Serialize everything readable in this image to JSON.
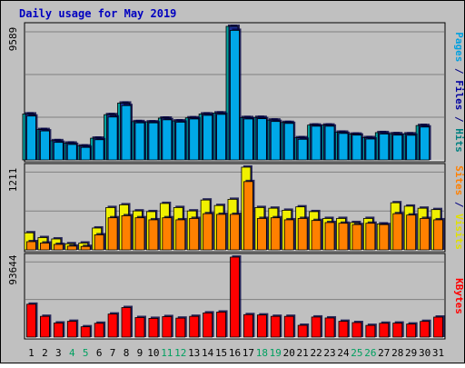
{
  "chart_data": {
    "type": "bar",
    "title": "Daily usage for May 2019",
    "days": [
      "1",
      "2",
      "3",
      "4",
      "5",
      "6",
      "7",
      "8",
      "9",
      "10",
      "11",
      "12",
      "13",
      "14",
      "15",
      "16",
      "17",
      "18",
      "19",
      "20",
      "21",
      "22",
      "23",
      "24",
      "25",
      "26",
      "27",
      "28",
      "29",
      "30",
      "31"
    ],
    "weekend_days": [
      "4",
      "5",
      "11",
      "12",
      "18",
      "19",
      "25",
      "26"
    ],
    "panels": [
      {
        "key": "top",
        "max_label": "9589",
        "ymax": 9589,
        "right_label": [
          {
            "text": "Pages",
            "color": "#00A0E0"
          },
          {
            "text": " / ",
            "color": "#000080"
          },
          {
            "text": "Files",
            "color": "#0000A0"
          },
          {
            "text": " / ",
            "color": "#000080"
          },
          {
            "text": "Hits",
            "color": "#008080"
          }
        ],
        "series": [
          {
            "name": "Hits",
            "color": "#00A0A0",
            "shadow": true,
            "values": [
              3300,
              2180,
              1380,
              1210,
              1000,
              1560,
              3250,
              4080,
              2750,
              2730,
              3000,
              2800,
              3020,
              3300,
              3370,
              9589,
              3040,
              3050,
              2860,
              2690,
              1590,
              2500,
              2500,
              1990,
              1850,
              1600,
              1960,
              1880,
              1870,
              2470,
              0
            ]
          },
          {
            "name": "Files",
            "color": "#1A2D8F",
            "shadow": true,
            "values": [
              3300,
              2180,
              1380,
              1210,
              1000,
              1560,
              3250,
              4080,
              2750,
              2730,
              3000,
              2800,
              3020,
              3300,
              3370,
              9589,
              3040,
              3050,
              2860,
              2690,
              1590,
              2500,
              2500,
              1990,
              1850,
              1600,
              1960,
              1880,
              1870,
              2470,
              0
            ]
          },
          {
            "name": "Pages",
            "color": "#00A8E8",
            "shadow": true,
            "values": [
              3150,
              2080,
              1260,
              1110,
              900,
              1450,
              3080,
              3900,
              2660,
              2660,
              2880,
              2710,
              2940,
              3200,
              3270,
              9300,
              2940,
              2960,
              2760,
              2620,
              1480,
              2420,
              2420,
              1900,
              1780,
              1500,
              1860,
              1780,
              1770,
              2360,
              0
            ]
          }
        ]
      },
      {
        "key": "middle",
        "max_label": "1211",
        "ymax": 1211,
        "right_label": [
          {
            "text": "Sites",
            "color": "#FF8000"
          },
          {
            "text": " / ",
            "color": "#000080"
          },
          {
            "text": "Visits",
            "color": "#E0E000"
          }
        ],
        "series": [
          {
            "name": "Visits",
            "color": "#F0F000",
            "shadow": true,
            "values": [
              250,
              180,
              160,
              90,
              100,
              320,
              620,
              660,
              570,
              560,
              680,
              620,
              570,
              730,
              650,
              740,
              1211,
              620,
              610,
              580,
              630,
              560,
              460,
              460,
              400,
              460,
              380,
              690,
              640,
              610,
              590
            ]
          },
          {
            "name": "Sites",
            "color": "#FF8000",
            "shadow": true,
            "values": [
              120,
              100,
              80,
              55,
              50,
              220,
              470,
              500,
              470,
              440,
              470,
              440,
              460,
              530,
              520,
              520,
              1000,
              460,
              470,
              440,
              460,
              430,
              400,
              390,
              370,
              390,
              370,
              530,
              510,
              460,
              440
            ]
          }
        ]
      },
      {
        "key": "bottom",
        "max_label": "93644",
        "ymax": 93644,
        "right_label": [
          {
            "text": "KBytes",
            "color": "#FF0000"
          }
        ],
        "series": [
          {
            "name": "KBytes",
            "color": "#FF0000",
            "shadow": true,
            "values": [
              38500,
              24300,
              16500,
              18500,
              12100,
              16200,
              27000,
              34600,
              22900,
              21900,
              24000,
              22200,
              24300,
              28300,
              29300,
              93644,
              26300,
              25900,
              24300,
              24300,
              13800,
              23500,
              22400,
              18500,
              17000,
              13700,
              16200,
              16400,
              15300,
              18400,
              23400
            ]
          }
        ]
      }
    ]
  }
}
